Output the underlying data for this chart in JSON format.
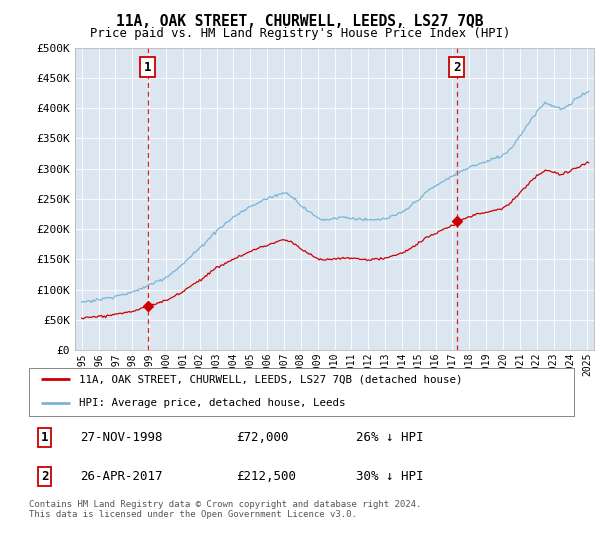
{
  "title": "11A, OAK STREET, CHURWELL, LEEDS, LS27 7QB",
  "subtitle": "Price paid vs. HM Land Registry's House Price Index (HPI)",
  "plot_bg_color": "#dce6f0",
  "ylim": [
    0,
    500000
  ],
  "yticks": [
    0,
    50000,
    100000,
    150000,
    200000,
    250000,
    300000,
    350000,
    400000,
    450000,
    500000
  ],
  "ytick_labels": [
    "£0",
    "£50K",
    "£100K",
    "£150K",
    "£200K",
    "£250K",
    "£300K",
    "£350K",
    "£400K",
    "£450K",
    "£500K"
  ],
  "hpi_color": "#7ab4d8",
  "property_color": "#cc0000",
  "vline_color": "#cc0000",
  "sale1_yr": 1998.9167,
  "sale1_price": 72000,
  "sale2_yr": 2017.25,
  "sale2_price": 212500,
  "legend_property": "11A, OAK STREET, CHURWELL, LEEDS, LS27 7QB (detached house)",
  "legend_hpi": "HPI: Average price, detached house, Leeds",
  "footnote": "Contains HM Land Registry data © Crown copyright and database right 2024.\nThis data is licensed under the Open Government Licence v3.0.",
  "xstart_year": 1995,
  "xend_year": 2025,
  "hpi_knots_x": [
    1995.0,
    1996.0,
    1997.0,
    1998.0,
    1999.0,
    2000.0,
    2001.0,
    2002.0,
    2003.0,
    2004.0,
    2005.0,
    2006.0,
    2007.0,
    2007.5,
    2008.0,
    2008.5,
    2009.0,
    2009.5,
    2010.0,
    2010.5,
    2011.0,
    2011.5,
    2012.0,
    2012.5,
    2013.0,
    2013.5,
    2014.0,
    2014.5,
    2015.0,
    2015.5,
    2016.0,
    2016.5,
    2017.0,
    2017.5,
    2018.0,
    2018.5,
    2019.0,
    2019.5,
    2020.0,
    2020.5,
    2021.0,
    2021.5,
    2022.0,
    2022.5,
    2023.0,
    2023.5,
    2024.0,
    2024.5,
    2025.0
  ],
  "hpi_knots_y": [
    78000,
    82000,
    88000,
    95000,
    107000,
    120000,
    142000,
    168000,
    196000,
    218000,
    235000,
    248000,
    260000,
    255000,
    240000,
    228000,
    218000,
    215000,
    218000,
    220000,
    218000,
    217000,
    215000,
    216000,
    218000,
    222000,
    228000,
    238000,
    250000,
    262000,
    272000,
    280000,
    288000,
    295000,
    302000,
    308000,
    312000,
    318000,
    322000,
    335000,
    355000,
    375000,
    395000,
    410000,
    405000,
    400000,
    408000,
    420000,
    430000
  ],
  "prop_discount": 0.72
}
